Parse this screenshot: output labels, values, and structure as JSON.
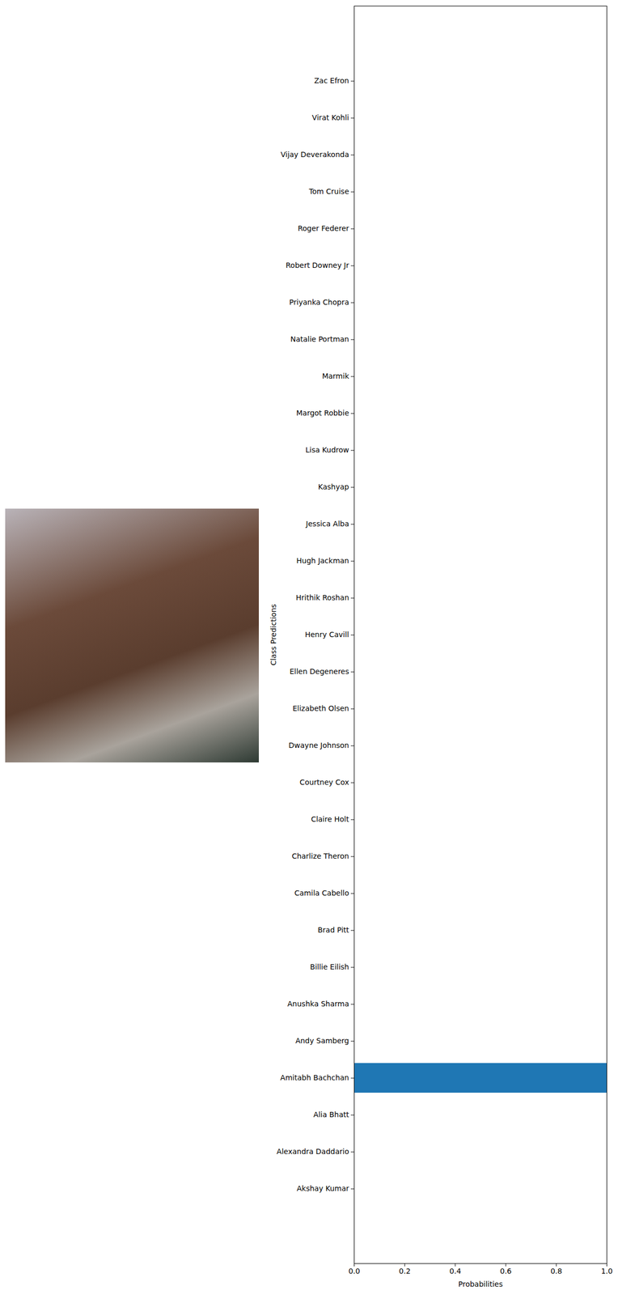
{
  "chart_data": {
    "type": "bar",
    "orientation": "horizontal",
    "x_label": "Probabilities",
    "y_label": "Class Predictions",
    "categories": [
      "Akshay Kumar",
      "Alexandra Daddario",
      "Alia Bhatt",
      "Amitabh Bachchan",
      "Andy Samberg",
      "Anushka Sharma",
      "Billie Eilish",
      "Brad Pitt",
      "Camila Cabello",
      "Charlize Theron",
      "Claire Holt",
      "Courtney Cox",
      "Dwayne Johnson",
      "Elizabeth Olsen",
      "Ellen Degeneres",
      "Henry Cavill",
      "Hrithik Roshan",
      "Hugh Jackman",
      "Jessica Alba",
      "Kashyap",
      "Lisa Kudrow",
      "Margot Robbie",
      "Marmik",
      "Natalie Portman",
      "Priyanka Chopra",
      "Robert Downey Jr",
      "Roger Federer",
      "Tom Cruise",
      "Vijay Deverakonda",
      "Virat Kohli",
      "Zac Efron"
    ],
    "values": [
      0,
      0,
      0,
      1.0,
      0,
      0,
      0,
      0,
      0,
      0,
      0,
      0,
      0,
      0,
      0,
      0,
      0,
      0,
      0,
      0,
      0,
      0,
      0,
      0,
      0,
      0,
      0,
      0,
      0,
      0,
      0
    ],
    "color": "#1f77b4",
    "xlim": [
      0,
      1.0
    ],
    "xticks": [
      {
        "value": 0,
        "label": "0.0"
      },
      0.2,
      0.4,
      0.6,
      0.8,
      {
        "value": 1.0,
        "label": "1.0"
      }
    ],
    "grid": false
  }
}
